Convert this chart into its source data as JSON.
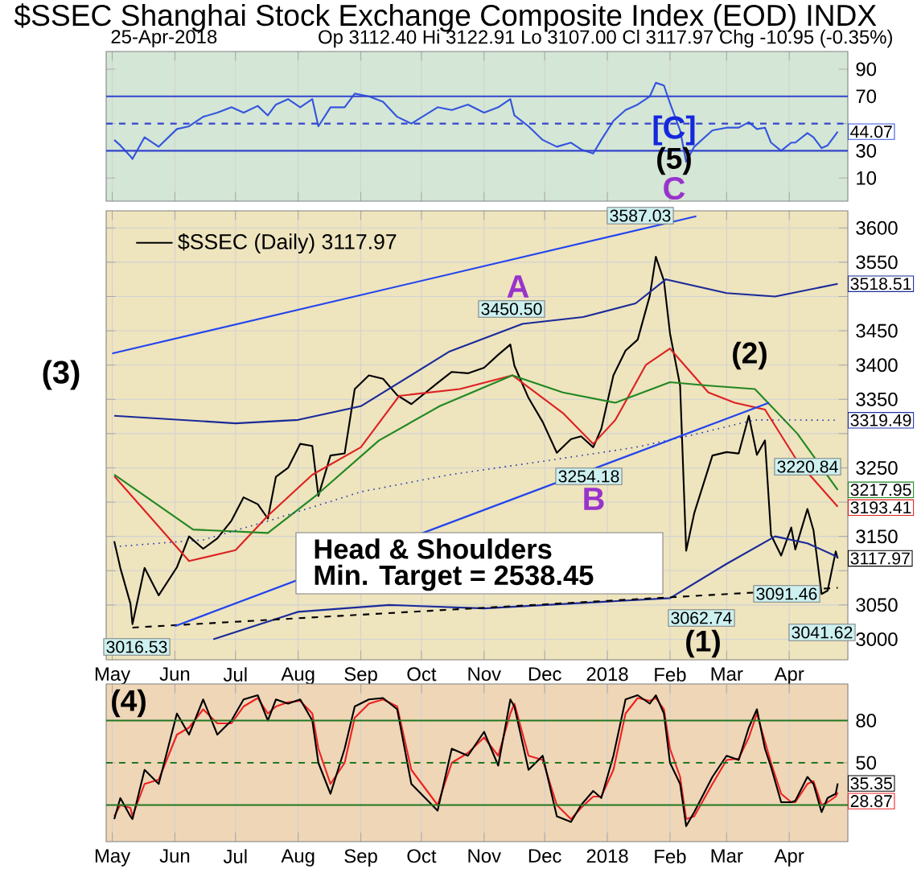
{
  "chart_data": [
    {
      "type": "line",
      "title": "$SSEC Shanghai Stock Exchange Composite Index (EOD) INDX",
      "subtitle": "25-Apr-2018",
      "annotations": [
        "Op 3112.40  Hi 3122.91  Lo 3107.00  Cl 3117.97  Chg -10.95 (-0.35%)",
        "[C]",
        "(5)",
        "C"
      ],
      "x": [
        "2017-05-02",
        "2017-05-05",
        "2017-05-10",
        "2017-05-11",
        "2017-05-17",
        "2017-05-24",
        "2017-06-02",
        "2017-06-08",
        "2017-06-15",
        "2017-06-22",
        "2017-06-29",
        "2017-07-05",
        "2017-07-12",
        "2017-07-17",
        "2017-07-21",
        "2017-07-27",
        "2017-08-02",
        "2017-08-08",
        "2017-08-11",
        "2017-08-17",
        "2017-08-24",
        "2017-08-29",
        "2017-09-05",
        "2017-09-12",
        "2017-09-19",
        "2017-09-26",
        "2017-10-09",
        "2017-10-16",
        "2017-10-24",
        "2017-11-01",
        "2017-11-08",
        "2017-11-14",
        "2017-11-16",
        "2017-11-23",
        "2017-11-30",
        "2017-12-07",
        "2017-12-14",
        "2017-12-19",
        "2017-12-25",
        "2017-12-29",
        "2018-01-04",
        "2018-01-10",
        "2018-01-16",
        "2018-01-22",
        "2018-01-25",
        "2018-01-29",
        "2018-02-01",
        "2018-02-06",
        "2018-02-09",
        "2018-02-13",
        "2018-02-22",
        "2018-03-01",
        "2018-03-07",
        "2018-03-12",
        "2018-03-16",
        "2018-03-20",
        "2018-03-23",
        "2018-03-28",
        "2018-04-02",
        "2018-04-04",
        "2018-04-10",
        "2018-04-13",
        "2018-04-17",
        "2018-04-20",
        "2018-04-24",
        "2018-04-25"
      ],
      "series": [
        {
          "color": "#3355dd",
          "values": [
            38,
            34,
            26,
            24,
            40,
            33,
            46,
            48,
            55,
            58,
            62,
            58,
            63,
            56,
            64,
            68,
            62,
            68,
            48,
            62,
            62,
            72,
            70,
            66,
            55,
            50,
            62,
            60,
            64,
            58,
            62,
            68,
            56,
            48,
            38,
            33,
            36,
            31,
            28,
            38,
            52,
            60,
            64,
            70,
            80,
            78,
            65,
            45,
            22,
            33,
            45,
            47,
            47,
            51,
            46,
            47,
            36,
            30,
            36,
            36,
            43,
            40,
            32,
            34,
            42,
            44.07
          ],
          "value_labels": [
            null,
            null,
            null,
            null,
            null,
            null,
            null,
            null,
            null,
            null,
            null,
            null,
            null,
            null,
            null,
            null,
            null,
            null,
            null,
            null,
            null,
            null,
            null,
            null,
            null,
            null,
            null,
            null,
            null,
            null,
            null,
            null,
            null,
            null,
            null,
            null,
            null,
            null,
            null,
            null,
            null,
            null,
            null,
            null,
            null,
            null,
            null,
            null,
            null,
            null,
            null,
            null,
            null,
            null,
            null,
            null,
            null,
            null,
            null,
            null,
            null,
            null,
            null,
            null,
            null,
            "44.07"
          ]
        }
      ],
      "xlim": [
        "2017-04-28",
        "2018-04-30"
      ],
      "ylim": [
        -7,
        103
      ],
      "yticks": [
        10,
        30,
        {
          "value": 50,
          "label": null
        },
        70,
        90
      ],
      "xticks": [
        {
          "value": "2017-05-01",
          "label": null
        },
        {
          "value": "2017-06-01",
          "label": null
        },
        {
          "value": "2017-07-01",
          "label": null
        },
        {
          "value": "2017-08-01",
          "label": null
        },
        {
          "value": "2017-09-01",
          "label": null
        },
        {
          "value": "2017-10-01",
          "label": null
        },
        {
          "value": "2017-11-01",
          "label": null
        },
        {
          "value": "2017-12-01",
          "label": null
        },
        {
          "value": "2018-01-01",
          "label": null
        },
        {
          "value": "2018-02-01",
          "label": null
        },
        {
          "value": "2018-03-01",
          "label": null
        },
        {
          "value": "2018-04-01",
          "label": null
        }
      ],
      "tick_labels": "y",
      "grid": "x",
      "ref_lines": [
        {
          "axis": "y",
          "value": 70,
          "color": "#3344cc",
          "line_style": "solid"
        },
        {
          "axis": "y",
          "value": 50,
          "color": "#3344cc",
          "line_style": "dashed"
        },
        {
          "axis": "y",
          "value": 30,
          "color": "#3344cc",
          "line_style": "solid"
        }
      ]
    },
    {
      "type": "line",
      "annotations": [
        "(3)",
        "Head & Shoulders",
        "Min. Target = 2538.45",
        "A",
        "3450.50",
        "B",
        "3254.18",
        "3587.03",
        "3062.74",
        "(1)",
        "(2)",
        "3091.46",
        "3220.84",
        "3041.62",
        "3016.53"
      ],
      "x": [
        "2017-05-02",
        "2017-05-05",
        "2017-05-10",
        "2017-05-11",
        "2017-05-17",
        "2017-05-24",
        "2017-06-02",
        "2017-06-08",
        "2017-06-15",
        "2017-06-22",
        "2017-06-29",
        "2017-07-05",
        "2017-07-12",
        "2017-07-17",
        "2017-07-21",
        "2017-07-27",
        "2017-08-02",
        "2017-08-08",
        "2017-08-11",
        "2017-08-17",
        "2017-08-24",
        "2017-08-29",
        "2017-09-05",
        "2017-09-12",
        "2017-09-19",
        "2017-09-26",
        "2017-10-09",
        "2017-10-16",
        "2017-10-24",
        "2017-11-01",
        "2017-11-08",
        "2017-11-14",
        "2017-11-16",
        "2017-11-23",
        "2017-11-30",
        "2017-12-07",
        "2017-12-14",
        "2017-12-19",
        "2017-12-25",
        "2017-12-29",
        "2018-01-04",
        "2018-01-10",
        "2018-01-16",
        "2018-01-22",
        "2018-01-25",
        "2018-01-29",
        "2018-02-01",
        "2018-02-06",
        "2018-02-09",
        "2018-02-13",
        "2018-02-22",
        "2018-03-01",
        "2018-03-07",
        "2018-03-12",
        "2018-03-16",
        "2018-03-20",
        "2018-03-23",
        "2018-03-28",
        "2018-04-02",
        "2018-04-04",
        "2018-04-10",
        "2018-04-13",
        "2018-04-17",
        "2018-04-20",
        "2018-04-24",
        "2018-04-25"
      ],
      "series": [
        {
          "name": "$SSEC (Daily) 3117.97",
          "color": "#000000",
          "values": [
            3143,
            3104,
            3052,
            3022,
            3104,
            3064,
            3105,
            3150,
            3132,
            3147,
            3173,
            3207,
            3197,
            3176,
            3237,
            3250,
            3285,
            3282,
            3209,
            3268,
            3271,
            3365,
            3385,
            3380,
            3356,
            3343,
            3374,
            3390,
            3388,
            3396,
            3415,
            3430,
            3399,
            3352,
            3317,
            3272,
            3292,
            3296,
            3280,
            3307,
            3385,
            3421,
            3437,
            3501,
            3558,
            3523,
            3446,
            3370,
            3129,
            3184,
            3268,
            3273,
            3271,
            3326,
            3269,
            3290,
            3152,
            3122,
            3163,
            3131,
            3190,
            3159,
            3066,
            3071,
            3128,
            3117.97
          ],
          "value_labels": [
            null,
            null,
            null,
            null,
            null,
            null,
            null,
            null,
            null,
            null,
            null,
            null,
            null,
            null,
            null,
            null,
            null,
            null,
            null,
            null,
            null,
            null,
            null,
            null,
            null,
            null,
            null,
            null,
            null,
            null,
            null,
            null,
            null,
            null,
            null,
            null,
            null,
            null,
            null,
            null,
            null,
            null,
            null,
            null,
            null,
            null,
            null,
            null,
            null,
            null,
            null,
            null,
            null,
            null,
            null,
            null,
            null,
            null,
            null,
            null,
            null,
            null,
            null,
            null,
            null,
            "3117.97"
          ]
        },
        {
          "color": "#dd2222",
          "x": [
            "2017-05-02",
            "2017-06-08",
            "2017-07-01",
            "2017-07-17",
            "2017-08-08",
            "2017-09-01",
            "2017-09-20",
            "2017-10-20",
            "2017-11-15",
            "2017-12-10",
            "2017-12-25",
            "2018-01-05",
            "2018-01-20",
            "2018-02-01",
            "2018-02-20",
            "2018-03-05",
            "2018-03-20",
            "2018-04-05",
            "2018-04-25"
          ],
          "values": [
            3238,
            3114,
            3130,
            3180,
            3240,
            3280,
            3355,
            3365,
            3385,
            3330,
            3285,
            3320,
            3400,
            3424,
            3360,
            3345,
            3335,
            3260,
            3193.41
          ],
          "value_labels": [
            null,
            null,
            null,
            null,
            null,
            null,
            null,
            null,
            null,
            null,
            null,
            null,
            null,
            null,
            null,
            null,
            null,
            null,
            "3193.41"
          ]
        },
        {
          "color": "#228822",
          "x": [
            "2017-05-02",
            "2017-06-10",
            "2017-07-17",
            "2017-08-10",
            "2017-09-10",
            "2017-10-10",
            "2017-11-15",
            "2017-12-10",
            "2018-01-05",
            "2018-02-01",
            "2018-02-20",
            "2018-03-15",
            "2018-04-05",
            "2018-04-25"
          ],
          "values": [
            3240,
            3160,
            3155,
            3210,
            3290,
            3340,
            3385,
            3360,
            3345,
            3375,
            3370,
            3365,
            3300,
            3217.95
          ],
          "value_labels": [
            null,
            null,
            null,
            null,
            null,
            null,
            null,
            null,
            null,
            null,
            null,
            null,
            null,
            "3217.95"
          ]
        },
        {
          "color": "#2233aa",
          "line_style": "dotted",
          "x": [
            "2017-05-02",
            "2017-06-15",
            "2017-07-20",
            "2017-09-01",
            "2017-10-15",
            "2017-12-01",
            "2018-01-15",
            "2018-02-15",
            "2018-03-15",
            "2018-04-25"
          ],
          "values": [
            3135,
            3145,
            3175,
            3215,
            3240,
            3260,
            3280,
            3300,
            3320,
            3319.49
          ],
          "value_labels": [
            null,
            null,
            null,
            null,
            null,
            null,
            null,
            null,
            null,
            "3319.49"
          ]
        },
        {
          "color": "#1a2a99",
          "x": [
            "2017-05-02",
            "2017-07-01",
            "2017-08-01",
            "2017-09-01",
            "2017-10-15",
            "2017-11-20",
            "2017-12-20",
            "2018-01-15",
            "2018-01-30",
            "2018-03-01",
            "2018-03-25",
            "2018-04-25"
          ],
          "values": [
            3326,
            3315,
            3320,
            3340,
            3420,
            3460,
            3470,
            3490,
            3525,
            3505,
            3500,
            3518.51
          ],
          "value_labels": [
            null,
            null,
            null,
            null,
            null,
            null,
            null,
            null,
            null,
            null,
            null,
            "3518.51"
          ]
        },
        {
          "color": "#1a2a99",
          "x": [
            "2017-06-20",
            "2017-08-01",
            "2017-09-15",
            "2017-11-01",
            "2018-01-01",
            "2018-02-01",
            "2018-03-01",
            "2018-03-25",
            "2018-04-10",
            "2018-04-25"
          ],
          "values": [
            3000,
            3040,
            3050,
            3045,
            3055,
            3060,
            3110,
            3150,
            3140,
            3120
          ]
        },
        {
          "color": "#000000",
          "line_style": "dashed",
          "x": [
            "2017-05-11",
            "2018-04-25"
          ],
          "values": [
            3017,
            3075
          ]
        },
        {
          "color": "#2244ee",
          "x": [
            "2017-06-01",
            "2018-03-22"
          ],
          "values": [
            3019,
            3345
          ]
        },
        {
          "color": "#2244ee",
          "x": [
            "2017-05-01",
            "2018-02-14"
          ],
          "values": [
            3417,
            3617
          ]
        }
      ],
      "xlim": [
        "2017-04-28",
        "2018-04-30"
      ],
      "ylim": [
        2970,
        3625
      ],
      "yticks": [
        3000,
        3050,
        {
          "value": 3100,
          "label": null
        },
        3150,
        {
          "value": 3200,
          "label": null
        },
        3250,
        {
          "value": 3300,
          "label": null
        },
        3350,
        3400,
        3450,
        {
          "value": 3500,
          "label": null
        },
        3550,
        3600
      ],
      "xticks": [
        {
          "value": "2017-05-01",
          "label": "May"
        },
        {
          "value": "2017-06-01",
          "label": "Jun"
        },
        {
          "value": "2017-07-01",
          "label": "Jul"
        },
        {
          "value": "2017-08-01",
          "label": "Aug"
        },
        {
          "value": "2017-09-01",
          "label": "Sep"
        },
        {
          "value": "2017-10-01",
          "label": "Oct"
        },
        {
          "value": "2017-11-01",
          "label": "Nov"
        },
        {
          "value": "2017-12-01",
          "label": "Dec"
        },
        {
          "value": "2018-01-01",
          "label": "2018"
        },
        {
          "value": "2018-02-01",
          "label": "Feb"
        },
        {
          "value": "2018-03-01",
          "label": "Mar"
        },
        {
          "value": "2018-04-01",
          "label": "Apr"
        }
      ],
      "grid": true,
      "legend": "top left"
    },
    {
      "type": "line",
      "annotations": [
        "(4)"
      ],
      "x": [
        "2017-05-02",
        "2017-05-05",
        "2017-05-10",
        "2017-05-11",
        "2017-05-17",
        "2017-05-24",
        "2017-06-02",
        "2017-06-08",
        "2017-06-15",
        "2017-06-22",
        "2017-06-29",
        "2017-07-05",
        "2017-07-12",
        "2017-07-17",
        "2017-07-21",
        "2017-07-27",
        "2017-08-02",
        "2017-08-08",
        "2017-08-11",
        "2017-08-17",
        "2017-08-24",
        "2017-08-29",
        "2017-09-05",
        "2017-09-12",
        "2017-09-19",
        "2017-09-26",
        "2017-10-09",
        "2017-10-16",
        "2017-10-24",
        "2017-11-01",
        "2017-11-08",
        "2017-11-14",
        "2017-11-16",
        "2017-11-23",
        "2017-11-30",
        "2017-12-07",
        "2017-12-14",
        "2017-12-19",
        "2017-12-25",
        "2017-12-29",
        "2018-01-04",
        "2018-01-10",
        "2018-01-16",
        "2018-01-22",
        "2018-01-25",
        "2018-01-29",
        "2018-02-01",
        "2018-02-06",
        "2018-02-09",
        "2018-02-13",
        "2018-02-22",
        "2018-03-01",
        "2018-03-07",
        "2018-03-12",
        "2018-03-16",
        "2018-03-20",
        "2018-03-23",
        "2018-03-28",
        "2018-04-02",
        "2018-04-04",
        "2018-04-10",
        "2018-04-13",
        "2018-04-17",
        "2018-04-20",
        "2018-04-24",
        "2018-04-25"
      ],
      "series": [
        {
          "color": "#ee2222",
          "values": [
            12,
            20,
            18,
            12,
            35,
            38,
            70,
            75,
            88,
            78,
            78,
            90,
            96,
            85,
            90,
            93,
            94,
            85,
            60,
            35,
            50,
            82,
            92,
            95,
            90,
            45,
            20,
            50,
            57,
            68,
            55,
            85,
            92,
            55,
            52,
            20,
            10,
            18,
            26,
            26,
            45,
            85,
            96,
            94,
            96,
            88,
            60,
            40,
            10,
            12,
            35,
            52,
            53,
            68,
            85,
            65,
            50,
            28,
            22,
            22,
            35,
            37,
            20,
            22,
            26,
            28.87
          ],
          "value_labels": [
            null,
            null,
            null,
            null,
            null,
            null,
            null,
            null,
            null,
            null,
            null,
            null,
            null,
            null,
            null,
            null,
            null,
            null,
            null,
            null,
            null,
            null,
            null,
            null,
            null,
            null,
            null,
            null,
            null,
            null,
            null,
            null,
            null,
            null,
            null,
            null,
            null,
            null,
            null,
            null,
            null,
            null,
            null,
            null,
            null,
            null,
            null,
            null,
            null,
            null,
            null,
            null,
            null,
            null,
            null,
            null,
            null,
            null,
            null,
            null,
            null,
            null,
            null,
            null,
            null,
            "28.87"
          ]
        },
        {
          "color": "#000000",
          "values": [
            10,
            25,
            12,
            10,
            45,
            35,
            85,
            70,
            95,
            70,
            80,
            95,
            98,
            80,
            95,
            92,
            95,
            80,
            50,
            28,
            60,
            90,
            95,
            96,
            88,
            35,
            16,
            60,
            55,
            72,
            48,
            95,
            90,
            45,
            55,
            12,
            8,
            20,
            30,
            25,
            55,
            95,
            98,
            92,
            98,
            85,
            50,
            35,
            5,
            15,
            40,
            55,
            52,
            75,
            88,
            60,
            47,
            22,
            22,
            23,
            40,
            35,
            15,
            25,
            28,
            35.35
          ],
          "value_labels": [
            null,
            null,
            null,
            null,
            null,
            null,
            null,
            null,
            null,
            null,
            null,
            null,
            null,
            null,
            null,
            null,
            null,
            null,
            null,
            null,
            null,
            null,
            null,
            null,
            null,
            null,
            null,
            null,
            null,
            null,
            null,
            null,
            null,
            null,
            null,
            null,
            null,
            null,
            null,
            null,
            null,
            null,
            null,
            null,
            null,
            null,
            null,
            null,
            null,
            null,
            null,
            null,
            null,
            null,
            null,
            null,
            null,
            null,
            null,
            null,
            null,
            null,
            null,
            null,
            null,
            "35.35"
          ]
        }
      ],
      "xlim": [
        "2017-04-28",
        "2018-04-30"
      ],
      "ylim": [
        -6,
        106
      ],
      "yticks": [
        {
          "value": 20,
          "label": null
        },
        50,
        80
      ],
      "xticks": [
        {
          "value": "2017-05-01",
          "label": "May"
        },
        {
          "value": "2017-06-01",
          "label": "Jun"
        },
        {
          "value": "2017-07-01",
          "label": "Jul"
        },
        {
          "value": "2017-08-01",
          "label": "Aug"
        },
        {
          "value": "2017-09-01",
          "label": "Sep"
        },
        {
          "value": "2017-10-01",
          "label": "Oct"
        },
        {
          "value": "2017-11-01",
          "label": "Nov"
        },
        {
          "value": "2017-12-01",
          "label": "Dec"
        },
        {
          "value": "2018-01-01",
          "label": "2018"
        },
        {
          "value": "2018-02-01",
          "label": "Feb"
        },
        {
          "value": "2018-03-01",
          "label": "Mar"
        },
        {
          "value": "2018-04-01",
          "label": "Apr"
        }
      ],
      "grid": "x",
      "ref_lines": [
        {
          "axis": "y",
          "value": 80,
          "color": "#227722",
          "line_style": "solid"
        },
        {
          "axis": "y",
          "value": 50,
          "color": "#227722",
          "line_style": "dashed"
        },
        {
          "axis": "y",
          "value": 20,
          "color": "#227722",
          "line_style": "solid"
        }
      ]
    }
  ]
}
